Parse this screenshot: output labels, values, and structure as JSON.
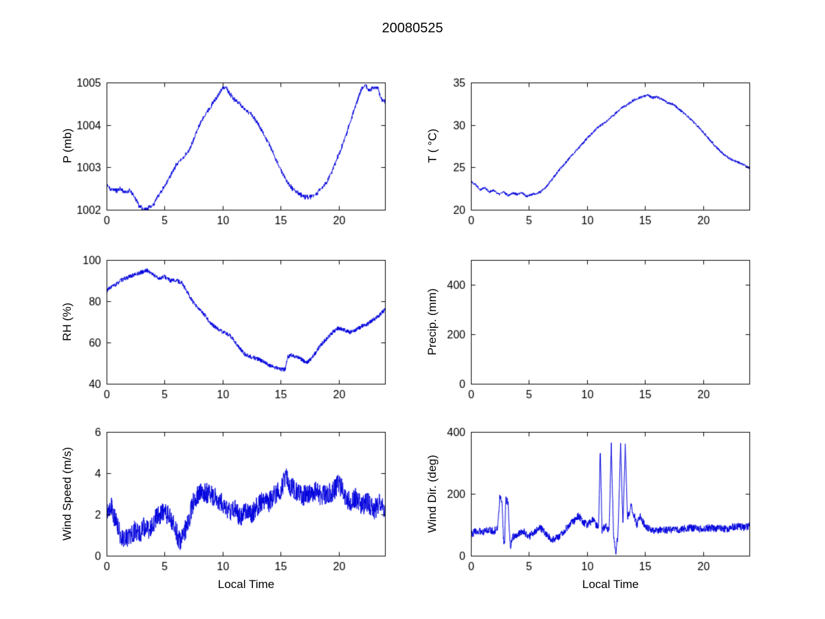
{
  "figure": {
    "title": "20080525"
  },
  "chart_data": [
    {
      "name": "pressure",
      "type": "line",
      "title": "",
      "xlabel": "",
      "ylabel": "P (mb)",
      "xlim": [
        0,
        24
      ],
      "ylim": [
        1002,
        1005
      ],
      "xticks": [
        0,
        5,
        10,
        15,
        20
      ],
      "xtick_labels": [
        "0",
        "5",
        "10",
        "15",
        "20"
      ],
      "yticks": [
        1002,
        1003,
        1004,
        1005
      ],
      "ytick_labels": [
        "1002",
        "1003",
        "1004",
        "1005"
      ],
      "line_color": "#0000DD",
      "noise": 0.04,
      "quantize": 0.05,
      "seed": 11,
      "keypoints": [
        [
          0,
          1002.6
        ],
        [
          0.3,
          1002.5
        ],
        [
          0.8,
          1002.45
        ],
        [
          1.2,
          1002.5
        ],
        [
          1.6,
          1002.4
        ],
        [
          2,
          1002.45
        ],
        [
          2.4,
          1002.3
        ],
        [
          2.8,
          1002.1
        ],
        [
          3.2,
          1002.0
        ],
        [
          3.6,
          1002.05
        ],
        [
          4,
          1002.1
        ],
        [
          4.3,
          1002.25
        ],
        [
          4.6,
          1002.4
        ],
        [
          5,
          1002.55
        ],
        [
          5.5,
          1002.8
        ],
        [
          6,
          1003.05
        ],
        [
          6.5,
          1003.2
        ],
        [
          7,
          1003.35
        ],
        [
          7.5,
          1003.65
        ],
        [
          8,
          1004.0
        ],
        [
          8.5,
          1004.25
        ],
        [
          9,
          1004.45
        ],
        [
          9.5,
          1004.65
        ],
        [
          10,
          1004.85
        ],
        [
          10.3,
          1004.9
        ],
        [
          10.6,
          1004.75
        ],
        [
          11,
          1004.6
        ],
        [
          11.5,
          1004.5
        ],
        [
          12,
          1004.35
        ],
        [
          12.5,
          1004.25
        ],
        [
          13,
          1004.05
        ],
        [
          13.5,
          1003.8
        ],
        [
          14,
          1003.55
        ],
        [
          14.5,
          1003.25
        ],
        [
          15,
          1002.95
        ],
        [
          15.5,
          1002.7
        ],
        [
          16,
          1002.5
        ],
        [
          16.5,
          1002.4
        ],
        [
          17,
          1002.3
        ],
        [
          17.5,
          1002.3
        ],
        [
          18,
          1002.35
        ],
        [
          18.5,
          1002.5
        ],
        [
          19,
          1002.65
        ],
        [
          19.5,
          1002.95
        ],
        [
          20,
          1003.3
        ],
        [
          20.5,
          1003.65
        ],
        [
          21,
          1004.05
        ],
        [
          21.5,
          1004.5
        ],
        [
          22,
          1004.85
        ],
        [
          22.3,
          1004.95
        ],
        [
          22.6,
          1004.8
        ],
        [
          23,
          1004.9
        ],
        [
          23.4,
          1004.85
        ],
        [
          23.7,
          1004.6
        ],
        [
          24,
          1004.55
        ]
      ]
    },
    {
      "name": "temperature",
      "type": "line",
      "title": "",
      "xlabel": "",
      "ylabel": "T ( °C)",
      "xlim": [
        0,
        24
      ],
      "ylim": [
        20,
        35
      ],
      "xticks": [
        0,
        5,
        10,
        15,
        20
      ],
      "xtick_labels": [
        "0",
        "5",
        "10",
        "15",
        "20"
      ],
      "yticks": [
        20,
        25,
        30,
        35
      ],
      "ytick_labels": [
        "20",
        "25",
        "30",
        "35"
      ],
      "line_color": "#0000DD",
      "noise": 0.15,
      "quantize": 0,
      "seed": 22,
      "keypoints": [
        [
          0,
          23.3
        ],
        [
          0.4,
          23.0
        ],
        [
          0.8,
          22.4
        ],
        [
          1.2,
          22.6
        ],
        [
          1.6,
          22.1
        ],
        [
          2,
          22.3
        ],
        [
          2.4,
          21.8
        ],
        [
          2.8,
          22.1
        ],
        [
          3.2,
          21.7
        ],
        [
          3.6,
          22.0
        ],
        [
          4,
          21.8
        ],
        [
          4.4,
          22.0
        ],
        [
          4.8,
          21.6
        ],
        [
          5.2,
          21.8
        ],
        [
          5.6,
          21.9
        ],
        [
          6,
          22.1
        ],
        [
          6.5,
          22.7
        ],
        [
          7,
          23.6
        ],
        [
          7.5,
          24.5
        ],
        [
          8,
          25.3
        ],
        [
          8.5,
          26.1
        ],
        [
          9,
          26.9
        ],
        [
          9.5,
          27.6
        ],
        [
          10,
          28.4
        ],
        [
          10.5,
          29.1
        ],
        [
          11,
          29.8
        ],
        [
          11.5,
          30.2
        ],
        [
          12,
          30.8
        ],
        [
          12.5,
          31.4
        ],
        [
          13,
          32.0
        ],
        [
          13.5,
          32.4
        ],
        [
          14,
          32.9
        ],
        [
          14.5,
          33.2
        ],
        [
          15,
          33.4
        ],
        [
          15.3,
          33.5
        ],
        [
          15.6,
          33.2
        ],
        [
          16,
          33.3
        ],
        [
          16.5,
          33.0
        ],
        [
          17,
          32.6
        ],
        [
          17.5,
          32.4
        ],
        [
          18,
          31.8
        ],
        [
          18.5,
          31.2
        ],
        [
          19,
          30.6
        ],
        [
          19.5,
          29.9
        ],
        [
          20,
          29.2
        ],
        [
          20.5,
          28.4
        ],
        [
          21,
          27.6
        ],
        [
          21.5,
          26.9
        ],
        [
          22,
          26.3
        ],
        [
          22.5,
          25.9
        ],
        [
          23,
          25.6
        ],
        [
          23.5,
          25.3
        ],
        [
          24,
          24.9
        ]
      ]
    },
    {
      "name": "relative-humidity",
      "type": "line",
      "title": "",
      "xlabel": "",
      "ylabel": "RH (%)",
      "xlim": [
        0,
        24
      ],
      "ylim": [
        40,
        100
      ],
      "xticks": [
        0,
        5,
        10,
        15,
        20
      ],
      "xtick_labels": [
        "0",
        "5",
        "10",
        "15",
        "20"
      ],
      "yticks": [
        40,
        60,
        80,
        100
      ],
      "ytick_labels": [
        "40",
        "60",
        "80",
        "100"
      ],
      "line_color": "#0000DD",
      "noise": 1.0,
      "quantize": 0,
      "seed": 33,
      "keypoints": [
        [
          0,
          85
        ],
        [
          0.4,
          87
        ],
        [
          0.8,
          88
        ],
        [
          1.2,
          90
        ],
        [
          1.6,
          91
        ],
        [
          2,
          92
        ],
        [
          2.5,
          93
        ],
        [
          3,
          94
        ],
        [
          3.5,
          95
        ],
        [
          4,
          93
        ],
        [
          4.5,
          91
        ],
        [
          5,
          92
        ],
        [
          5.5,
          90
        ],
        [
          6,
          90
        ],
        [
          6.5,
          89
        ],
        [
          7,
          84
        ],
        [
          7.5,
          79
        ],
        [
          8,
          76
        ],
        [
          8.5,
          73
        ],
        [
          9,
          69
        ],
        [
          9.5,
          67
        ],
        [
          10,
          65
        ],
        [
          10.5,
          64
        ],
        [
          11,
          61
        ],
        [
          11.5,
          57
        ],
        [
          12,
          54
        ],
        [
          12.5,
          53
        ],
        [
          13,
          52
        ],
        [
          13.5,
          51
        ],
        [
          14,
          49
        ],
        [
          14.5,
          48
        ],
        [
          15,
          47
        ],
        [
          15.4,
          47
        ],
        [
          15.6,
          53
        ],
        [
          16,
          54
        ],
        [
          16.4,
          53
        ],
        [
          16.8,
          52
        ],
        [
          17.2,
          50
        ],
        [
          17.6,
          52
        ],
        [
          18,
          55
        ],
        [
          18.5,
          59
        ],
        [
          19,
          62
        ],
        [
          19.5,
          65
        ],
        [
          20,
          67
        ],
        [
          20.5,
          66
        ],
        [
          21,
          65
        ],
        [
          21.5,
          66
        ],
        [
          22,
          68
        ],
        [
          22.5,
          69
        ],
        [
          23,
          71
        ],
        [
          23.5,
          73
        ],
        [
          24,
          76
        ]
      ]
    },
    {
      "name": "precipitation",
      "type": "line",
      "title": "",
      "xlabel": "",
      "ylabel": "Precip. (mm)",
      "xlim": [
        0,
        24
      ],
      "ylim": [
        0,
        500
      ],
      "xticks": [
        0,
        5,
        10,
        15,
        20
      ],
      "xtick_labels": [
        "0",
        "5",
        "10",
        "15",
        "20"
      ],
      "yticks": [
        0,
        200,
        400
      ],
      "ytick_labels": [
        "0",
        "200",
        "400"
      ],
      "line_color": "#0000DD",
      "noise": 0,
      "quantize": 0,
      "seed": 44,
      "keypoints": []
    },
    {
      "name": "wind-speed",
      "type": "line",
      "title": "",
      "xlabel": "Local Time",
      "ylabel": "Wind Speed (m/s)",
      "xlim": [
        0,
        24
      ],
      "ylim": [
        0,
        6
      ],
      "xticks": [
        0,
        5,
        10,
        15,
        20
      ],
      "xtick_labels": [
        "0",
        "5",
        "10",
        "15",
        "20"
      ],
      "yticks": [
        0,
        2,
        4,
        6
      ],
      "ytick_labels": [
        "0",
        "2",
        "4",
        "6"
      ],
      "line_color": "#0000DD",
      "noise": 0.5,
      "quantize": 0,
      "seed": 55,
      "keypoints": [
        [
          0,
          2.2
        ],
        [
          0.4,
          2.5
        ],
        [
          0.8,
          1.6
        ],
        [
          1.2,
          1.0
        ],
        [
          1.6,
          0.8
        ],
        [
          2,
          1.0
        ],
        [
          2.4,
          1.2
        ],
        [
          2.8,
          1.0
        ],
        [
          3.2,
          1.4
        ],
        [
          3.6,
          1.2
        ],
        [
          4,
          1.6
        ],
        [
          4.4,
          1.9
        ],
        [
          4.8,
          2.1
        ],
        [
          5.2,
          2.0
        ],
        [
          5.6,
          1.7
        ],
        [
          6,
          1.2
        ],
        [
          6.3,
          0.7
        ],
        [
          6.6,
          1.0
        ],
        [
          7,
          1.6
        ],
        [
          7.5,
          2.6
        ],
        [
          8,
          3.0
        ],
        [
          8.5,
          3.1
        ],
        [
          9,
          2.9
        ],
        [
          9.5,
          2.8
        ],
        [
          10,
          2.5
        ],
        [
          10.5,
          2.1
        ],
        [
          11,
          2.3
        ],
        [
          11.5,
          1.9
        ],
        [
          12,
          2.2
        ],
        [
          12.5,
          2.0
        ],
        [
          13,
          2.4
        ],
        [
          13.5,
          2.7
        ],
        [
          14,
          2.6
        ],
        [
          14.5,
          3.0
        ],
        [
          15,
          3.1
        ],
        [
          15.5,
          4.0
        ],
        [
          15.7,
          3.4
        ],
        [
          16,
          3.3
        ],
        [
          16.5,
          3.0
        ],
        [
          17,
          2.9
        ],
        [
          17.5,
          3.0
        ],
        [
          18,
          3.1
        ],
        [
          18.5,
          2.9
        ],
        [
          19,
          3.0
        ],
        [
          19.5,
          3.1
        ],
        [
          20,
          3.5
        ],
        [
          20.3,
          3.2
        ],
        [
          20.6,
          2.9
        ],
        [
          21,
          2.6
        ],
        [
          21.5,
          2.8
        ],
        [
          22,
          2.4
        ],
        [
          22.5,
          2.6
        ],
        [
          23,
          2.2
        ],
        [
          23.5,
          2.5
        ],
        [
          24,
          2.3
        ]
      ]
    },
    {
      "name": "wind-direction",
      "type": "line",
      "title": "",
      "xlabel": "Local Time",
      "ylabel": "Wind Dir. (deg)",
      "xlim": [
        0,
        24
      ],
      "ylim": [
        0,
        400
      ],
      "xticks": [
        0,
        5,
        10,
        15,
        20
      ],
      "xtick_labels": [
        "0",
        "5",
        "10",
        "15",
        "20"
      ],
      "yticks": [
        0,
        200,
        400
      ],
      "ytick_labels": [
        "0",
        "200",
        "400"
      ],
      "line_color": "#0000DD",
      "noise": 12,
      "quantize": 0,
      "seed": 66,
      "keypoints": [
        [
          0,
          70
        ],
        [
          0.5,
          80
        ],
        [
          1,
          75
        ],
        [
          1.5,
          85
        ],
        [
          2,
          80
        ],
        [
          2.3,
          90
        ],
        [
          2.5,
          195
        ],
        [
          2.7,
          160
        ],
        [
          2.8,
          60
        ],
        [
          2.9,
          30
        ],
        [
          3,
          185
        ],
        [
          3.2,
          170
        ],
        [
          3.4,
          25
        ],
        [
          3.6,
          60
        ],
        [
          4,
          70
        ],
        [
          4.5,
          80
        ],
        [
          5,
          60
        ],
        [
          5.5,
          80
        ],
        [
          6,
          90
        ],
        [
          6.5,
          70
        ],
        [
          7,
          50
        ],
        [
          7.5,
          60
        ],
        [
          8,
          80
        ],
        [
          8.5,
          100
        ],
        [
          9,
          115
        ],
        [
          9.3,
          130
        ],
        [
          9.6,
          110
        ],
        [
          10,
          100
        ],
        [
          10.5,
          115
        ],
        [
          11,
          90
        ],
        [
          11.15,
          350
        ],
        [
          11.3,
          80
        ],
        [
          11.6,
          100
        ],
        [
          11.9,
          80
        ],
        [
          12.1,
          355
        ],
        [
          12.3,
          60
        ],
        [
          12.5,
          5
        ],
        [
          12.7,
          90
        ],
        [
          12.9,
          360
        ],
        [
          13.1,
          100
        ],
        [
          13.3,
          360
        ],
        [
          13.5,
          120
        ],
        [
          13.8,
          160
        ],
        [
          14,
          140
        ],
        [
          14.3,
          100
        ],
        [
          14.6,
          130
        ],
        [
          15,
          95
        ],
        [
          15.5,
          85
        ],
        [
          16,
          80
        ],
        [
          16.5,
          85
        ],
        [
          17,
          82
        ],
        [
          17.5,
          85
        ],
        [
          18,
          85
        ],
        [
          18.5,
          88
        ],
        [
          19,
          90
        ],
        [
          19.5,
          88
        ],
        [
          20,
          85
        ],
        [
          20.5,
          90
        ],
        [
          21,
          88
        ],
        [
          21.5,
          90
        ],
        [
          22,
          86
        ],
        [
          22.5,
          92
        ],
        [
          23,
          95
        ],
        [
          23.5,
          92
        ],
        [
          24,
          95
        ]
      ]
    }
  ]
}
